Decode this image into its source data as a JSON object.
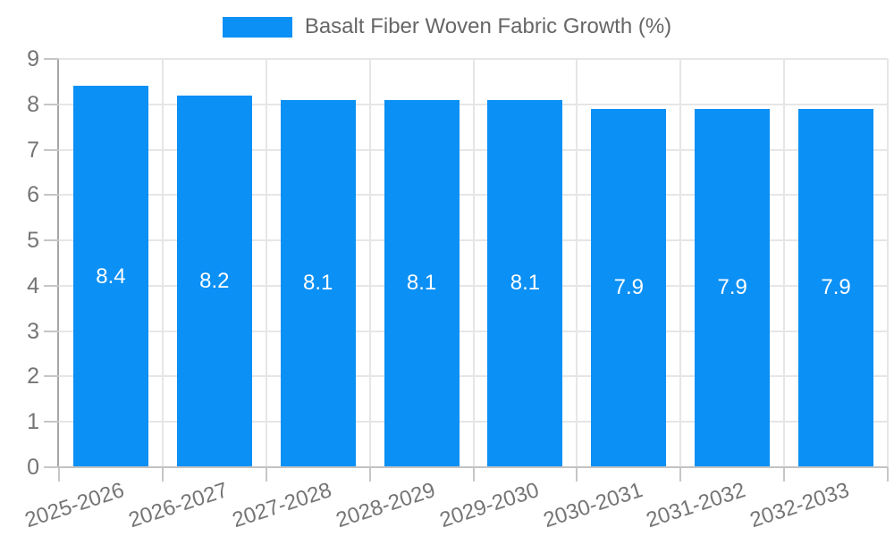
{
  "chart_data": {
    "type": "bar",
    "title": "",
    "legend": "Basalt Fiber Woven Fabric Growth (%)",
    "legend_position": "top",
    "categories": [
      "2025-2026",
      "2026-2027",
      "2027-2028",
      "2028-2029",
      "2029-2030",
      "2030-2031",
      "2031-2032",
      "2032-2033"
    ],
    "values": [
      8.4,
      8.2,
      8.1,
      8.1,
      8.1,
      7.9,
      7.9,
      7.9
    ],
    "xlabel": "",
    "ylabel": "",
    "ylim": [
      0,
      9
    ],
    "ytick_step": 1,
    "yticks": [
      0,
      1,
      2,
      3,
      4,
      5,
      6,
      7,
      8,
      9
    ],
    "grid": true,
    "bar_color": "#0b90f5",
    "value_label_color": "#ffffff",
    "axis_label_color": "#757575",
    "legend_text_color": "#666666",
    "gridline_color": "#e6e6e6"
  }
}
